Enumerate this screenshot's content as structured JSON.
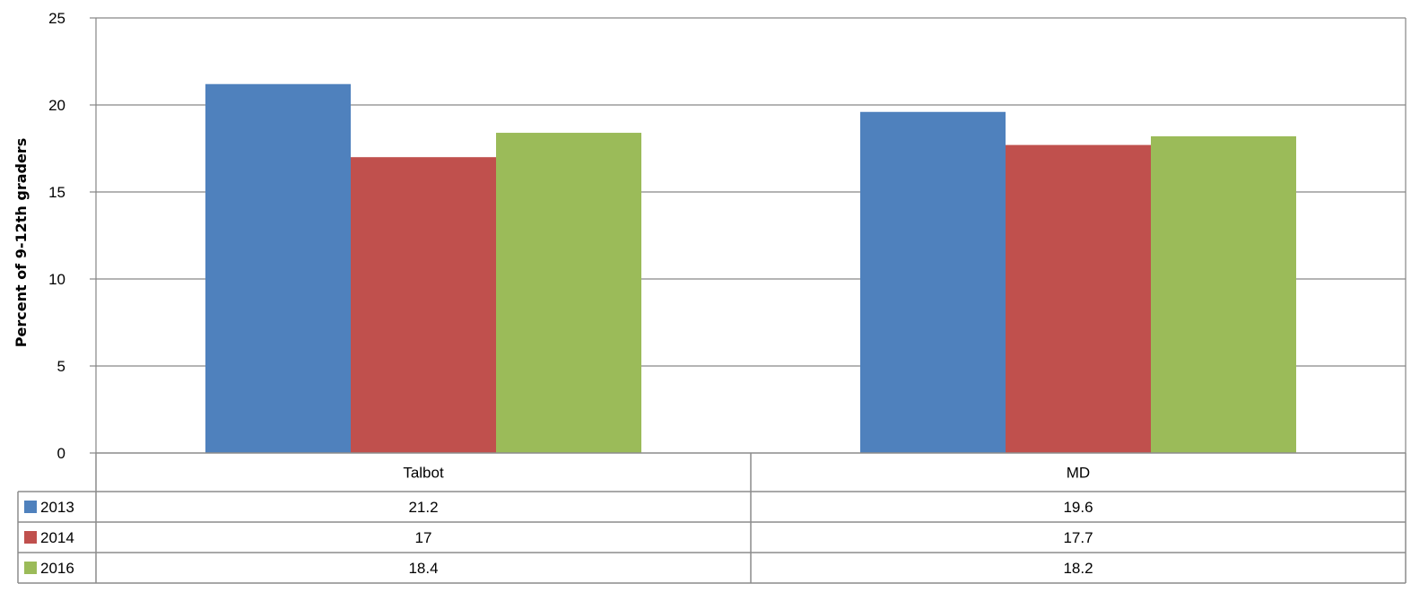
{
  "chart_data": {
    "type": "bar",
    "categories": [
      "Talbot",
      "MD"
    ],
    "series": [
      {
        "name": "2013",
        "values": [
          21.2,
          19.6
        ],
        "color": "#4F81BD"
      },
      {
        "name": "2014",
        "values": [
          17,
          17.7
        ],
        "color": "#C0504D"
      },
      {
        "name": "2016",
        "values": [
          18.4,
          18.2
        ],
        "color": "#9BBB59"
      }
    ],
    "title": "",
    "xlabel": "",
    "ylabel": "Percent of 9-12th graders",
    "ylim": [
      0,
      25
    ],
    "yticks": [
      0,
      5,
      10,
      15,
      20,
      25
    ],
    "grid": true,
    "legend": "data-table-left",
    "data_table": true
  }
}
